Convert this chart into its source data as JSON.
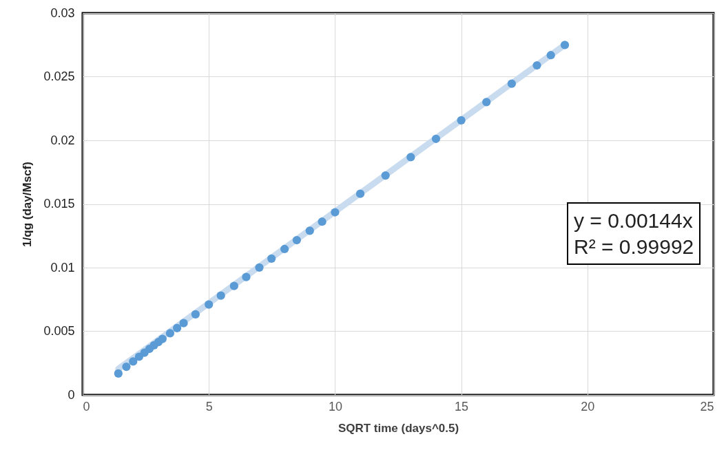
{
  "chart_data": {
    "type": "scatter",
    "xlabel": "SQRT time (days^0.5)",
    "ylabel": "1/qg (day/Mscf)",
    "xlim": [
      0,
      25
    ],
    "xticks": [
      0,
      5,
      10,
      15,
      20,
      25
    ],
    "ylim": [
      0,
      0.03
    ],
    "yticks": [
      0,
      0.005,
      0.01,
      0.015,
      0.02,
      0.025,
      0.03
    ],
    "grid": true,
    "series": [
      {
        "type": "line",
        "color": "#c9dbef",
        "x": [
          1.414,
          19.105
        ],
        "values": [
          0.00204,
          0.02751
        ]
      },
      {
        "marker": "circle",
        "color": "#5b9bd5",
        "x": [
          1.414,
          1.732,
          2,
          2.236,
          2.449,
          2.646,
          2.828,
          3,
          3.162,
          3.464,
          3.742,
          4,
          4.472,
          5,
          5.477,
          6,
          6.481,
          7,
          7.483,
          8,
          8.485,
          9,
          9.487,
          10,
          11,
          12,
          13,
          14,
          15,
          16,
          17,
          18,
          18.55,
          19.105
        ],
        "values": [
          0.00168,
          0.00221,
          0.00263,
          0.003,
          0.00332,
          0.00362,
          0.0039,
          0.00415,
          0.0044,
          0.00484,
          0.00525,
          0.00564,
          0.00633,
          0.0071,
          0.0078,
          0.00856,
          0.00926,
          0.01001,
          0.01071,
          0.01146,
          0.01216,
          0.0129,
          0.01361,
          0.01435,
          0.0158,
          0.01724,
          0.01868,
          0.02012,
          0.02157,
          0.02301,
          0.02445,
          0.02589,
          0.02669,
          0.02749
        ]
      }
    ],
    "annotations": [
      "y = 0.00144x",
      "R² = 0.99992"
    ]
  }
}
